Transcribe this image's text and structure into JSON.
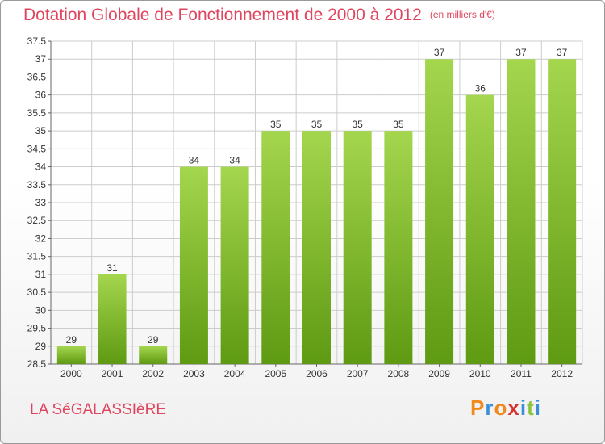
{
  "title": "Dotation Globale de Fonctionnement de 2000 à 2012",
  "subtitle": "(en milliers d'€)",
  "commune": "LA SéGALASSIèRE",
  "logo": "Proxiti",
  "colors": {
    "title": "#e0455f",
    "bar_top": "#a4d64e",
    "bar_bottom": "#5e9a12",
    "grid": "#cccccc"
  },
  "chart_data": {
    "type": "bar",
    "categories": [
      "2000",
      "2001",
      "2002",
      "2003",
      "2004",
      "2005",
      "2006",
      "2007",
      "2008",
      "2009",
      "2010",
      "2011",
      "2012"
    ],
    "values": [
      29,
      31,
      29,
      34,
      34,
      35,
      35,
      35,
      35,
      37,
      36,
      37,
      37
    ],
    "title": "Dotation Globale de Fonctionnement de 2000 à 2012",
    "subtitle": "(en milliers d'€)",
    "xlabel": "",
    "ylabel": "",
    "ylim": [
      28.5,
      37.5
    ],
    "yticks": [
      "28.5",
      "29",
      "29.5",
      "30",
      "30.5",
      "31",
      "31.5",
      "32",
      "32.5",
      "33",
      "33.5",
      "34",
      "34.5",
      "35",
      "35.5",
      "36",
      "36.5",
      "37",
      "37.5"
    ],
    "grid": true,
    "legend": "none"
  }
}
